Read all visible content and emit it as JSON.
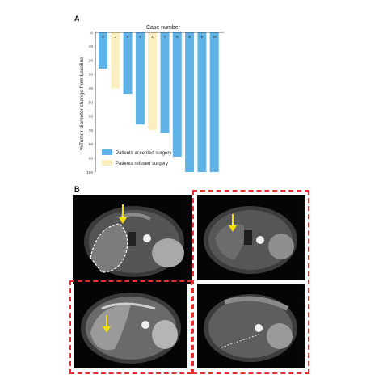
{
  "figure": {
    "panel_a_label": "A",
    "panel_b_label": "B"
  },
  "chart_data": {
    "type": "bar",
    "title": "Case number",
    "ylabel": "%Tumor diameter change from baseline",
    "xlabel": "",
    "categories": [
      "2",
      "3",
      "8",
      "4",
      "1",
      "7",
      "5",
      "6",
      "9",
      "10"
    ],
    "values": [
      -26,
      -40,
      -44,
      -66,
      -70,
      -72,
      -89,
      -100,
      -100,
      -100
    ],
    "groups": [
      "accepted",
      "refused",
      "accepted",
      "accepted",
      "refused",
      "accepted",
      "accepted",
      "accepted",
      "accepted",
      "accepted"
    ],
    "ylim": [
      -100,
      0
    ],
    "yticks": [
      "0",
      "10",
      "20",
      "30",
      "40",
      "50",
      "60",
      "70",
      "80",
      "90",
      "100"
    ],
    "colors": {
      "accepted": "#5fb3e6",
      "refused": "#fbefc0"
    },
    "legend": {
      "placement": "bottom-left",
      "entries": [
        {
          "key": "accepted",
          "label": "Patients accepted surgery"
        },
        {
          "key": "refused",
          "label": "Patients refused surgery"
        }
      ]
    },
    "grid": false
  },
  "mri_panels": {
    "highlight_color": "#e0312f",
    "arrow_color": "#f5e000"
  }
}
